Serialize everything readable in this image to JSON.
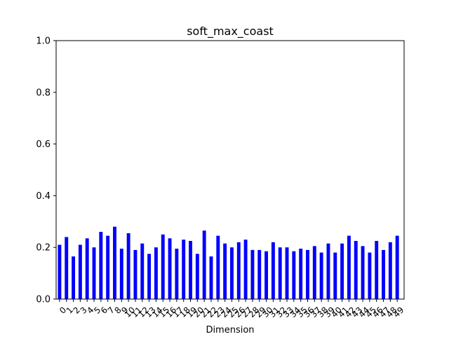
{
  "chart_data": {
    "type": "bar",
    "title": "soft_max_coast",
    "xlabel": "Dimension",
    "ylabel": "",
    "ylim": [
      0,
      1.0
    ],
    "yticks": [
      0.0,
      0.2,
      0.4,
      0.6,
      0.8,
      1.0
    ],
    "ytick_labels": [
      "0.0",
      "0.2",
      "0.4",
      "0.6",
      "0.8",
      "1.0"
    ],
    "categories": [
      "0",
      "1",
      "2",
      "3",
      "4",
      "5",
      "6",
      "7",
      "8",
      "9",
      "10",
      "11",
      "12",
      "13",
      "14",
      "15",
      "16",
      "17",
      "18",
      "19",
      "20",
      "21",
      "22",
      "23",
      "24",
      "25",
      "26",
      "27",
      "28",
      "29",
      "30",
      "31",
      "32",
      "33",
      "34",
      "35",
      "36",
      "37",
      "38",
      "39",
      "40",
      "41",
      "42",
      "43",
      "44",
      "45",
      "46",
      "47",
      "48",
      "49"
    ],
    "values": [
      0.21,
      0.24,
      0.165,
      0.21,
      0.235,
      0.2,
      0.26,
      0.245,
      0.28,
      0.195,
      0.255,
      0.19,
      0.215,
      0.175,
      0.2,
      0.25,
      0.235,
      0.195,
      0.23,
      0.225,
      0.175,
      0.265,
      0.165,
      0.245,
      0.215,
      0.2,
      0.22,
      0.23,
      0.19,
      0.19,
      0.185,
      0.22,
      0.2,
      0.2,
      0.185,
      0.195,
      0.19,
      0.205,
      0.18,
      0.215,
      0.18,
      0.215,
      0.245,
      0.225,
      0.205,
      0.18,
      0.225,
      0.19,
      0.22,
      0.245
    ],
    "bar_color": "#0000ff",
    "grid": false,
    "legend": "none"
  }
}
